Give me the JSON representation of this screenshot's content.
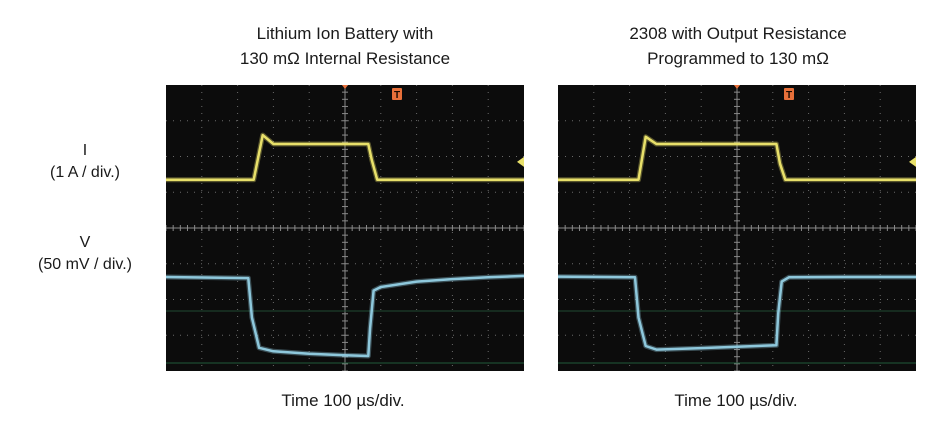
{
  "chart_data": [
    {
      "type": "line",
      "title": [
        "Lithium Ion Battery with",
        "130 mΩ Internal Resistance"
      ],
      "xlabel": "Time 100 µs/div.",
      "ylabels": [
        {
          "name": "I",
          "scale": "(1 A / div.)"
        },
        {
          "name": "V",
          "scale": "(50 mV / div.)"
        }
      ],
      "x_divisions": 10,
      "y_divisions": 8,
      "grid": true,
      "trigger_marker": "T",
      "x_unit_per_div_us": 100,
      "series": [
        {
          "color": "#e8e06a",
          "x": [
            0,
            2.45,
            2.7,
            3.0,
            5.65,
            5.75,
            5.9,
            10
          ],
          "y": [
            5.35,
            5.35,
            6.6,
            6.35,
            6.35,
            5.9,
            5.35,
            5.35
          ]
        },
        {
          "color": "#8ec8dc",
          "x": [
            0,
            2.3,
            2.4,
            2.6,
            3.0,
            4.0,
            5.0,
            5.65,
            5.7,
            5.8,
            6.0,
            7.0,
            8.0,
            9.0,
            10
          ],
          "y": [
            2.63,
            2.6,
            1.5,
            0.65,
            0.55,
            0.48,
            0.44,
            0.42,
            1.2,
            2.25,
            2.35,
            2.5,
            2.57,
            2.62,
            2.66
          ]
        }
      ]
    },
    {
      "type": "line",
      "title": [
        "2308 with Output Resistance",
        "Programmed to 130 mΩ"
      ],
      "xlabel": "Time 100 µs/div.",
      "x_divisions": 10,
      "y_divisions": 8,
      "grid": true,
      "trigger_marker": "T",
      "x_unit_per_div_us": 100,
      "series": [
        {
          "color": "#e8e06a",
          "x": [
            0,
            2.25,
            2.45,
            2.75,
            6.1,
            6.2,
            6.35,
            10
          ],
          "y": [
            5.35,
            5.35,
            6.55,
            6.35,
            6.35,
            5.8,
            5.35,
            5.35
          ]
        },
        {
          "color": "#8ec8dc",
          "x": [
            0,
            2.15,
            2.25,
            2.45,
            2.75,
            4.0,
            5.0,
            6.1,
            6.15,
            6.25,
            6.45,
            8.0,
            10
          ],
          "y": [
            2.64,
            2.62,
            1.5,
            0.7,
            0.6,
            0.64,
            0.68,
            0.72,
            1.6,
            2.5,
            2.62,
            2.63,
            2.63
          ]
        }
      ]
    }
  ]
}
